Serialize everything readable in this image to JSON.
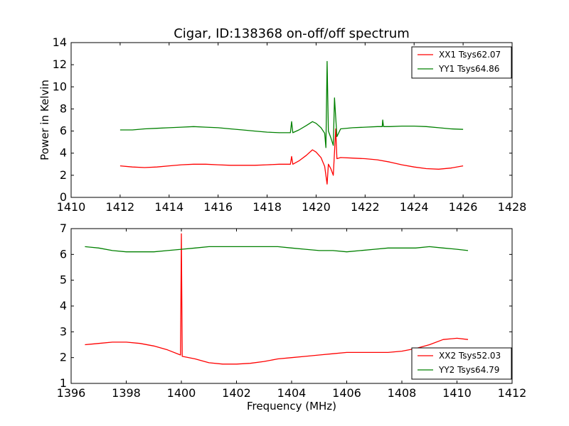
{
  "chart_data": [
    {
      "type": "line",
      "title": "Cigar, ID:138368 on-off/off spectrum",
      "xlabel": "",
      "ylabel": "Power in Kelvin",
      "xlim": [
        1410,
        1428
      ],
      "ylim": [
        0,
        14
      ],
      "xticks": [
        1410,
        1412,
        1414,
        1416,
        1418,
        1420,
        1422,
        1424,
        1426,
        1428
      ],
      "yticks": [
        0,
        2,
        4,
        6,
        8,
        10,
        12,
        14
      ],
      "grid": false,
      "legend_position": "top-right",
      "series": [
        {
          "name": "XX1 Tsys62.07",
          "color": "#ff0000",
          "points": [
            [
              1412.0,
              2.85
            ],
            [
              1412.5,
              2.75
            ],
            [
              1413.0,
              2.7
            ],
            [
              1413.5,
              2.75
            ],
            [
              1414.0,
              2.85
            ],
            [
              1414.5,
              2.95
            ],
            [
              1415.0,
              3.0
            ],
            [
              1415.5,
              3.0
            ],
            [
              1416.0,
              2.95
            ],
            [
              1416.5,
              2.9
            ],
            [
              1417.0,
              2.9
            ],
            [
              1417.5,
              2.9
            ],
            [
              1418.0,
              2.95
            ],
            [
              1418.5,
              3.0
            ],
            [
              1418.95,
              3.0
            ],
            [
              1419.0,
              3.7
            ],
            [
              1419.05,
              3.0
            ],
            [
              1419.3,
              3.3
            ],
            [
              1419.6,
              3.8
            ],
            [
              1419.85,
              4.3
            ],
            [
              1420.0,
              4.1
            ],
            [
              1420.2,
              3.6
            ],
            [
              1420.35,
              2.8
            ],
            [
              1420.45,
              1.2
            ],
            [
              1420.5,
              3.0
            ],
            [
              1420.6,
              2.6
            ],
            [
              1420.7,
              2.0
            ],
            [
              1420.8,
              6.2
            ],
            [
              1420.85,
              3.5
            ],
            [
              1421.0,
              3.6
            ],
            [
              1421.5,
              3.55
            ],
            [
              1422.0,
              3.5
            ],
            [
              1422.5,
              3.4
            ],
            [
              1423.0,
              3.2
            ],
            [
              1423.5,
              2.95
            ],
            [
              1424.0,
              2.75
            ],
            [
              1424.5,
              2.6
            ],
            [
              1425.0,
              2.55
            ],
            [
              1425.5,
              2.65
            ],
            [
              1426.0,
              2.85
            ]
          ]
        },
        {
          "name": "YY1 Tsys64.86",
          "color": "#008000",
          "points": [
            [
              1412.0,
              6.1
            ],
            [
              1412.5,
              6.1
            ],
            [
              1413.0,
              6.2
            ],
            [
              1413.5,
              6.25
            ],
            [
              1414.0,
              6.3
            ],
            [
              1414.5,
              6.35
            ],
            [
              1415.0,
              6.4
            ],
            [
              1415.5,
              6.35
            ],
            [
              1416.0,
              6.3
            ],
            [
              1416.5,
              6.2
            ],
            [
              1417.0,
              6.1
            ],
            [
              1417.5,
              6.0
            ],
            [
              1418.0,
              5.9
            ],
            [
              1418.5,
              5.85
            ],
            [
              1418.95,
              5.85
            ],
            [
              1419.0,
              6.85
            ],
            [
              1419.05,
              5.85
            ],
            [
              1419.3,
              6.1
            ],
            [
              1419.6,
              6.5
            ],
            [
              1419.85,
              6.85
            ],
            [
              1420.0,
              6.7
            ],
            [
              1420.2,
              6.3
            ],
            [
              1420.35,
              5.8
            ],
            [
              1420.4,
              4.5
            ],
            [
              1420.45,
              12.3
            ],
            [
              1420.5,
              6.0
            ],
            [
              1420.6,
              5.4
            ],
            [
              1420.7,
              4.7
            ],
            [
              1420.75,
              9.0
            ],
            [
              1420.85,
              5.5
            ],
            [
              1421.0,
              6.2
            ],
            [
              1421.5,
              6.3
            ],
            [
              1422.0,
              6.35
            ],
            [
              1422.5,
              6.4
            ],
            [
              1422.7,
              6.4
            ],
            [
              1422.72,
              7.0
            ],
            [
              1422.75,
              6.4
            ],
            [
              1423.0,
              6.4
            ],
            [
              1423.5,
              6.45
            ],
            [
              1424.0,
              6.45
            ],
            [
              1424.5,
              6.4
            ],
            [
              1425.0,
              6.3
            ],
            [
              1425.5,
              6.2
            ],
            [
              1426.0,
              6.15
            ]
          ]
        }
      ]
    },
    {
      "type": "line",
      "title": "",
      "xlabel": "Frequency (MHz)",
      "ylabel": "",
      "xlim": [
        1396,
        1412
      ],
      "ylim": [
        1,
        7
      ],
      "xticks": [
        1396,
        1398,
        1400,
        1402,
        1404,
        1406,
        1408,
        1410,
        1412
      ],
      "yticks": [
        1,
        2,
        3,
        4,
        5,
        6,
        7
      ],
      "grid": false,
      "legend_position": "bottom-right",
      "series": [
        {
          "name": "XX2 Tsys52.03",
          "color": "#ff0000",
          "points": [
            [
              1396.5,
              2.5
            ],
            [
              1397.0,
              2.55
            ],
            [
              1397.5,
              2.6
            ],
            [
              1398.0,
              2.6
            ],
            [
              1398.5,
              2.55
            ],
            [
              1399.0,
              2.45
            ],
            [
              1399.5,
              2.3
            ],
            [
              1399.97,
              2.1
            ],
            [
              1400.0,
              6.8
            ],
            [
              1400.03,
              2.05
            ],
            [
              1400.5,
              1.95
            ],
            [
              1401.0,
              1.8
            ],
            [
              1401.5,
              1.75
            ],
            [
              1402.0,
              1.75
            ],
            [
              1402.5,
              1.78
            ],
            [
              1403.0,
              1.85
            ],
            [
              1403.5,
              1.95
            ],
            [
              1404.0,
              2.0
            ],
            [
              1404.5,
              2.05
            ],
            [
              1405.0,
              2.1
            ],
            [
              1405.5,
              2.15
            ],
            [
              1406.0,
              2.2
            ],
            [
              1406.5,
              2.2
            ],
            [
              1407.0,
              2.2
            ],
            [
              1407.5,
              2.2
            ],
            [
              1408.0,
              2.25
            ],
            [
              1408.5,
              2.35
            ],
            [
              1409.0,
              2.5
            ],
            [
              1409.5,
              2.7
            ],
            [
              1410.0,
              2.75
            ],
            [
              1410.4,
              2.7
            ]
          ]
        },
        {
          "name": "YY2 Tsys64.79",
          "color": "#008000",
          "points": [
            [
              1396.5,
              6.3
            ],
            [
              1397.0,
              6.25
            ],
            [
              1397.5,
              6.15
            ],
            [
              1398.0,
              6.1
            ],
            [
              1398.5,
              6.1
            ],
            [
              1399.0,
              6.1
            ],
            [
              1399.5,
              6.15
            ],
            [
              1400.0,
              6.2
            ],
            [
              1400.5,
              6.25
            ],
            [
              1401.0,
              6.3
            ],
            [
              1401.5,
              6.3
            ],
            [
              1402.0,
              6.3
            ],
            [
              1402.5,
              6.3
            ],
            [
              1403.0,
              6.3
            ],
            [
              1403.5,
              6.3
            ],
            [
              1404.0,
              6.25
            ],
            [
              1404.5,
              6.2
            ],
            [
              1405.0,
              6.15
            ],
            [
              1405.5,
              6.15
            ],
            [
              1406.0,
              6.1
            ],
            [
              1406.5,
              6.15
            ],
            [
              1407.0,
              6.2
            ],
            [
              1407.5,
              6.25
            ],
            [
              1408.0,
              6.25
            ],
            [
              1408.5,
              6.25
            ],
            [
              1409.0,
              6.3
            ],
            [
              1409.5,
              6.25
            ],
            [
              1410.0,
              6.2
            ],
            [
              1410.4,
              6.15
            ]
          ]
        }
      ]
    }
  ]
}
